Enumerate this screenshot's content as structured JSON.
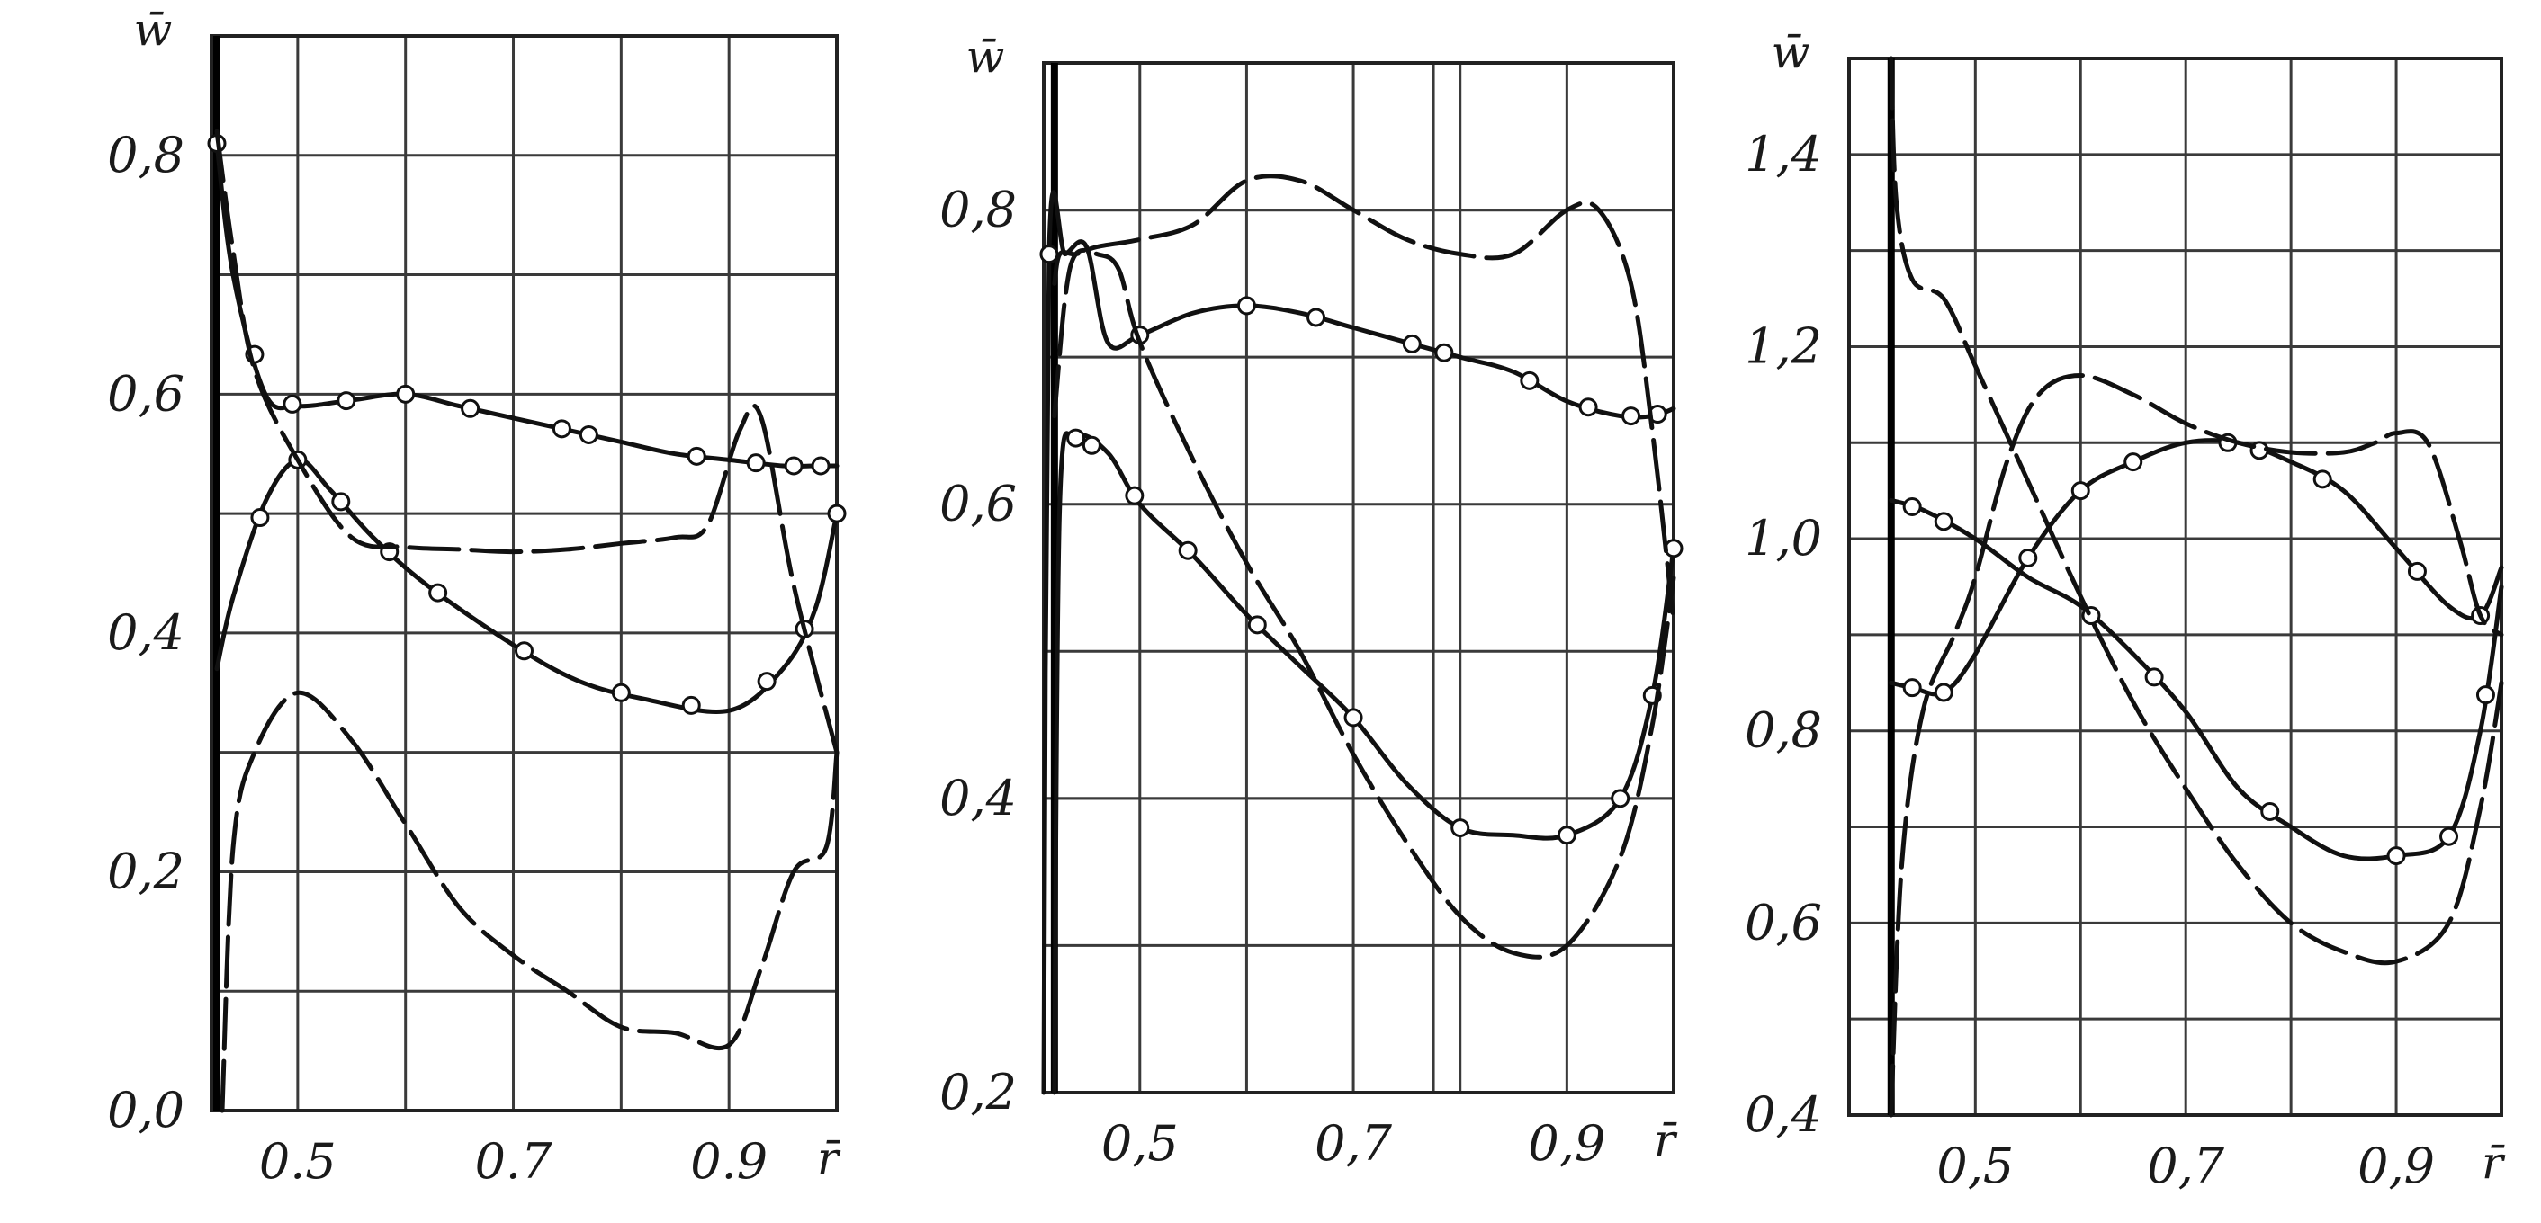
{
  "chart_data": [
    {
      "type": "line",
      "ylabel": "w̄",
      "xlabel": "r̄",
      "xlim": [
        0.42,
        1.0
      ],
      "ylim": [
        0.0,
        0.9
      ],
      "xticks": [
        0.5,
        0.7,
        0.9
      ],
      "xtick_labels": [
        "0.5",
        "0.7",
        "0.9"
      ],
      "yticks": [
        0.0,
        0.2,
        0.4,
        0.6,
        0.8
      ],
      "ytick_labels": [
        "0,0",
        "0,2",
        "0,4",
        "0,6",
        "0,8"
      ],
      "grid_x": [
        0.5,
        0.6,
        0.7,
        0.8,
        0.9
      ],
      "grid_y": [
        0.1,
        0.3,
        0.5,
        0.7,
        0.8
      ],
      "hub_x": 0.425,
      "grid": true,
      "series": [
        {
          "style": "solid-markers",
          "x": [
            0.425,
            0.44,
            0.47,
            0.5,
            0.55,
            0.6,
            0.65,
            0.7,
            0.75,
            0.8,
            0.85,
            0.9,
            0.95,
            0.98,
            1.0
          ],
          "y": [
            0.81,
            0.7,
            0.6,
            0.59,
            0.595,
            0.6,
            0.59,
            0.58,
            0.57,
            0.56,
            0.55,
            0.545,
            0.54,
            0.54,
            0.54
          ],
          "markers_x": [
            0.425,
            0.46,
            0.495,
            0.545,
            0.6,
            0.66,
            0.745,
            0.77,
            0.87,
            0.925,
            0.96,
            0.985
          ]
        },
        {
          "style": "solid-markers",
          "x": [
            0.425,
            0.44,
            0.47,
            0.5,
            0.53,
            0.57,
            0.62,
            0.7,
            0.76,
            0.82,
            0.9,
            0.95,
            0.98,
            1.0
          ],
          "y": [
            0.37,
            0.43,
            0.51,
            0.545,
            0.52,
            0.48,
            0.44,
            0.39,
            0.36,
            0.345,
            0.335,
            0.37,
            0.42,
            0.5
          ],
          "markers_x": [
            0.465,
            0.5,
            0.54,
            0.585,
            0.63,
            0.71,
            0.8,
            0.865,
            0.935,
            0.97,
            1.0
          ]
        },
        {
          "style": "long-dash",
          "x": [
            0.425,
            0.44,
            0.46,
            0.5,
            0.55,
            0.6,
            0.65,
            0.7,
            0.75,
            0.8,
            0.85,
            0.88,
            0.91,
            0.93,
            0.96,
            1.0
          ],
          "y": [
            0.82,
            0.72,
            0.62,
            0.545,
            0.48,
            0.472,
            0.47,
            0.468,
            0.47,
            0.475,
            0.48,
            0.49,
            0.57,
            0.58,
            0.44,
            0.3
          ]
        },
        {
          "style": "long-dash",
          "x": [
            0.43,
            0.44,
            0.46,
            0.5,
            0.55,
            0.6,
            0.65,
            0.7,
            0.75,
            0.8,
            0.85,
            0.9,
            0.93,
            0.96,
            0.99,
            1.0
          ],
          "y": [
            0.0,
            0.22,
            0.3,
            0.35,
            0.31,
            0.24,
            0.17,
            0.13,
            0.1,
            0.07,
            0.065,
            0.055,
            0.12,
            0.2,
            0.22,
            0.3
          ]
        }
      ]
    },
    {
      "type": "line",
      "ylabel": "w̄",
      "xlabel": "r̄",
      "xlim": [
        0.41,
        1.0
      ],
      "ylim": [
        0.2,
        0.9
      ],
      "xticks": [
        0.5,
        0.7,
        0.9
      ],
      "xtick_labels": [
        "0,5",
        "0,7",
        "0,9"
      ],
      "yticks": [
        0.2,
        0.4,
        0.6,
        0.8
      ],
      "ytick_labels": [
        "0,2",
        "0,4",
        "0,6",
        "0,8"
      ],
      "grid_x": [
        0.5,
        0.6,
        0.7,
        0.8,
        0.9
      ],
      "grid_y": [
        0.3,
        0.5,
        0.7
      ],
      "heavy_grid_y": [
        0.4,
        0.8
      ],
      "heavy_grid_x": [
        0.775
      ],
      "hub_x": 0.42,
      "grid": true,
      "series": [
        {
          "style": "solid-markers",
          "x": [
            0.41,
            0.415,
            0.43,
            0.45,
            0.47,
            0.5,
            0.55,
            0.6,
            0.65,
            0.7,
            0.75,
            0.8,
            0.85,
            0.9,
            0.95,
            0.98,
            1.0
          ],
          "y": [
            0.2,
            0.77,
            0.77,
            0.775,
            0.71,
            0.715,
            0.73,
            0.735,
            0.73,
            0.72,
            0.71,
            0.7,
            0.69,
            0.67,
            0.66,
            0.66,
            0.665
          ],
          "markers_x": [
            0.415,
            0.5,
            0.6,
            0.665,
            0.755,
            0.785,
            0.865,
            0.92,
            0.96,
            0.985
          ]
        },
        {
          "style": "solid-markers",
          "x": [
            0.42,
            0.425,
            0.44,
            0.47,
            0.5,
            0.55,
            0.6,
            0.65,
            0.7,
            0.75,
            0.8,
            0.85,
            0.9,
            0.95,
            0.98,
            1.0
          ],
          "y": [
            0.2,
            0.6,
            0.645,
            0.635,
            0.6,
            0.565,
            0.525,
            0.49,
            0.455,
            0.41,
            0.38,
            0.375,
            0.375,
            0.4,
            0.47,
            0.57
          ],
          "markers_x": [
            0.44,
            0.455,
            0.495,
            0.545,
            0.61,
            0.7,
            0.8,
            0.9,
            0.95,
            0.98,
            1.0
          ]
        },
        {
          "style": "long-dash",
          "x": [
            0.42,
            0.425,
            0.44,
            0.46,
            0.5,
            0.55,
            0.6,
            0.65,
            0.7,
            0.75,
            0.8,
            0.85,
            0.9,
            0.93,
            0.96,
            0.98,
            1.0
          ],
          "y": [
            0.75,
            0.77,
            0.77,
            0.775,
            0.78,
            0.79,
            0.82,
            0.82,
            0.8,
            0.78,
            0.77,
            0.77,
            0.8,
            0.8,
            0.75,
            0.65,
            0.52
          ]
        },
        {
          "style": "long-dash",
          "x": [
            0.42,
            0.43,
            0.44,
            0.46,
            0.48,
            0.5,
            0.55,
            0.6,
            0.65,
            0.7,
            0.75,
            0.8,
            0.85,
            0.9,
            0.95,
            0.98,
            1.0
          ],
          "y": [
            0.66,
            0.74,
            0.77,
            0.77,
            0.76,
            0.71,
            0.63,
            0.56,
            0.5,
            0.43,
            0.37,
            0.32,
            0.295,
            0.3,
            0.36,
            0.45,
            0.55
          ]
        }
      ]
    },
    {
      "type": "line",
      "ylabel": "w̄",
      "xlabel": "r̄",
      "xlim": [
        0.38,
        1.0
      ],
      "ylim": [
        0.4,
        1.5
      ],
      "xticks": [
        0.5,
        0.7,
        0.9
      ],
      "xtick_labels": [
        "0,5",
        "0,7",
        "0,9"
      ],
      "yticks": [
        0.4,
        0.6,
        0.8,
        1.0,
        1.2,
        1.4
      ],
      "ytick_labels": [
        "0,4",
        "0,6",
        "0,8",
        "1,0",
        "1,2",
        "1,4"
      ],
      "grid_x": [
        0.5,
        0.6,
        0.7,
        0.8,
        0.9
      ],
      "grid_y": [
        0.5,
        0.7,
        0.9,
        1.1,
        1.3
      ],
      "heavy_grid_y": [
        1.0
      ],
      "hub_x": 0.42,
      "grid": true,
      "series": [
        {
          "style": "solid-markers",
          "x": [
            0.42,
            0.45,
            0.5,
            0.55,
            0.6,
            0.65,
            0.7,
            0.75,
            0.8,
            0.85,
            0.9,
            0.95,
            0.98,
            1.0
          ],
          "y": [
            1.04,
            1.03,
            1.0,
            0.96,
            0.93,
            0.88,
            0.82,
            0.74,
            0.7,
            0.67,
            0.67,
            0.69,
            0.8,
            0.95
          ],
          "markers_x": [
            0.44,
            0.47,
            0.61,
            0.67,
            0.78,
            0.9,
            0.95,
            0.985
          ]
        },
        {
          "style": "solid-markers",
          "x": [
            0.42,
            0.44,
            0.47,
            0.5,
            0.55,
            0.6,
            0.65,
            0.7,
            0.75,
            0.8,
            0.85,
            0.9,
            0.95,
            0.98,
            1.0
          ],
          "y": [
            0.85,
            0.845,
            0.84,
            0.88,
            0.98,
            1.05,
            1.08,
            1.1,
            1.1,
            1.08,
            1.05,
            0.99,
            0.93,
            0.92,
            0.97
          ],
          "markers_x": [
            0.44,
            0.47,
            0.55,
            0.6,
            0.65,
            0.74,
            0.77,
            0.83,
            0.92,
            0.98
          ]
        },
        {
          "style": "long-dash",
          "x": [
            0.42,
            0.425,
            0.44,
            0.47,
            0.5,
            0.55,
            0.6,
            0.65,
            0.7,
            0.75,
            0.8,
            0.85,
            0.9,
            0.95,
            0.98,
            1.0
          ],
          "y": [
            1.5,
            1.35,
            1.27,
            1.25,
            1.18,
            1.06,
            0.94,
            0.83,
            0.74,
            0.66,
            0.6,
            0.57,
            0.56,
            0.6,
            0.72,
            0.85
          ]
        },
        {
          "style": "long-dash",
          "x": [
            0.42,
            0.43,
            0.45,
            0.48,
            0.5,
            0.53,
            0.56,
            0.6,
            0.65,
            0.7,
            0.75,
            0.8,
            0.85,
            0.88,
            0.9,
            0.93,
            0.96,
            0.98,
            1.0
          ],
          "y": [
            0.4,
            0.66,
            0.82,
            0.9,
            0.96,
            1.08,
            1.15,
            1.17,
            1.15,
            1.12,
            1.1,
            1.09,
            1.09,
            1.1,
            1.11,
            1.1,
            1.0,
            0.92,
            0.9
          ]
        }
      ]
    }
  ]
}
